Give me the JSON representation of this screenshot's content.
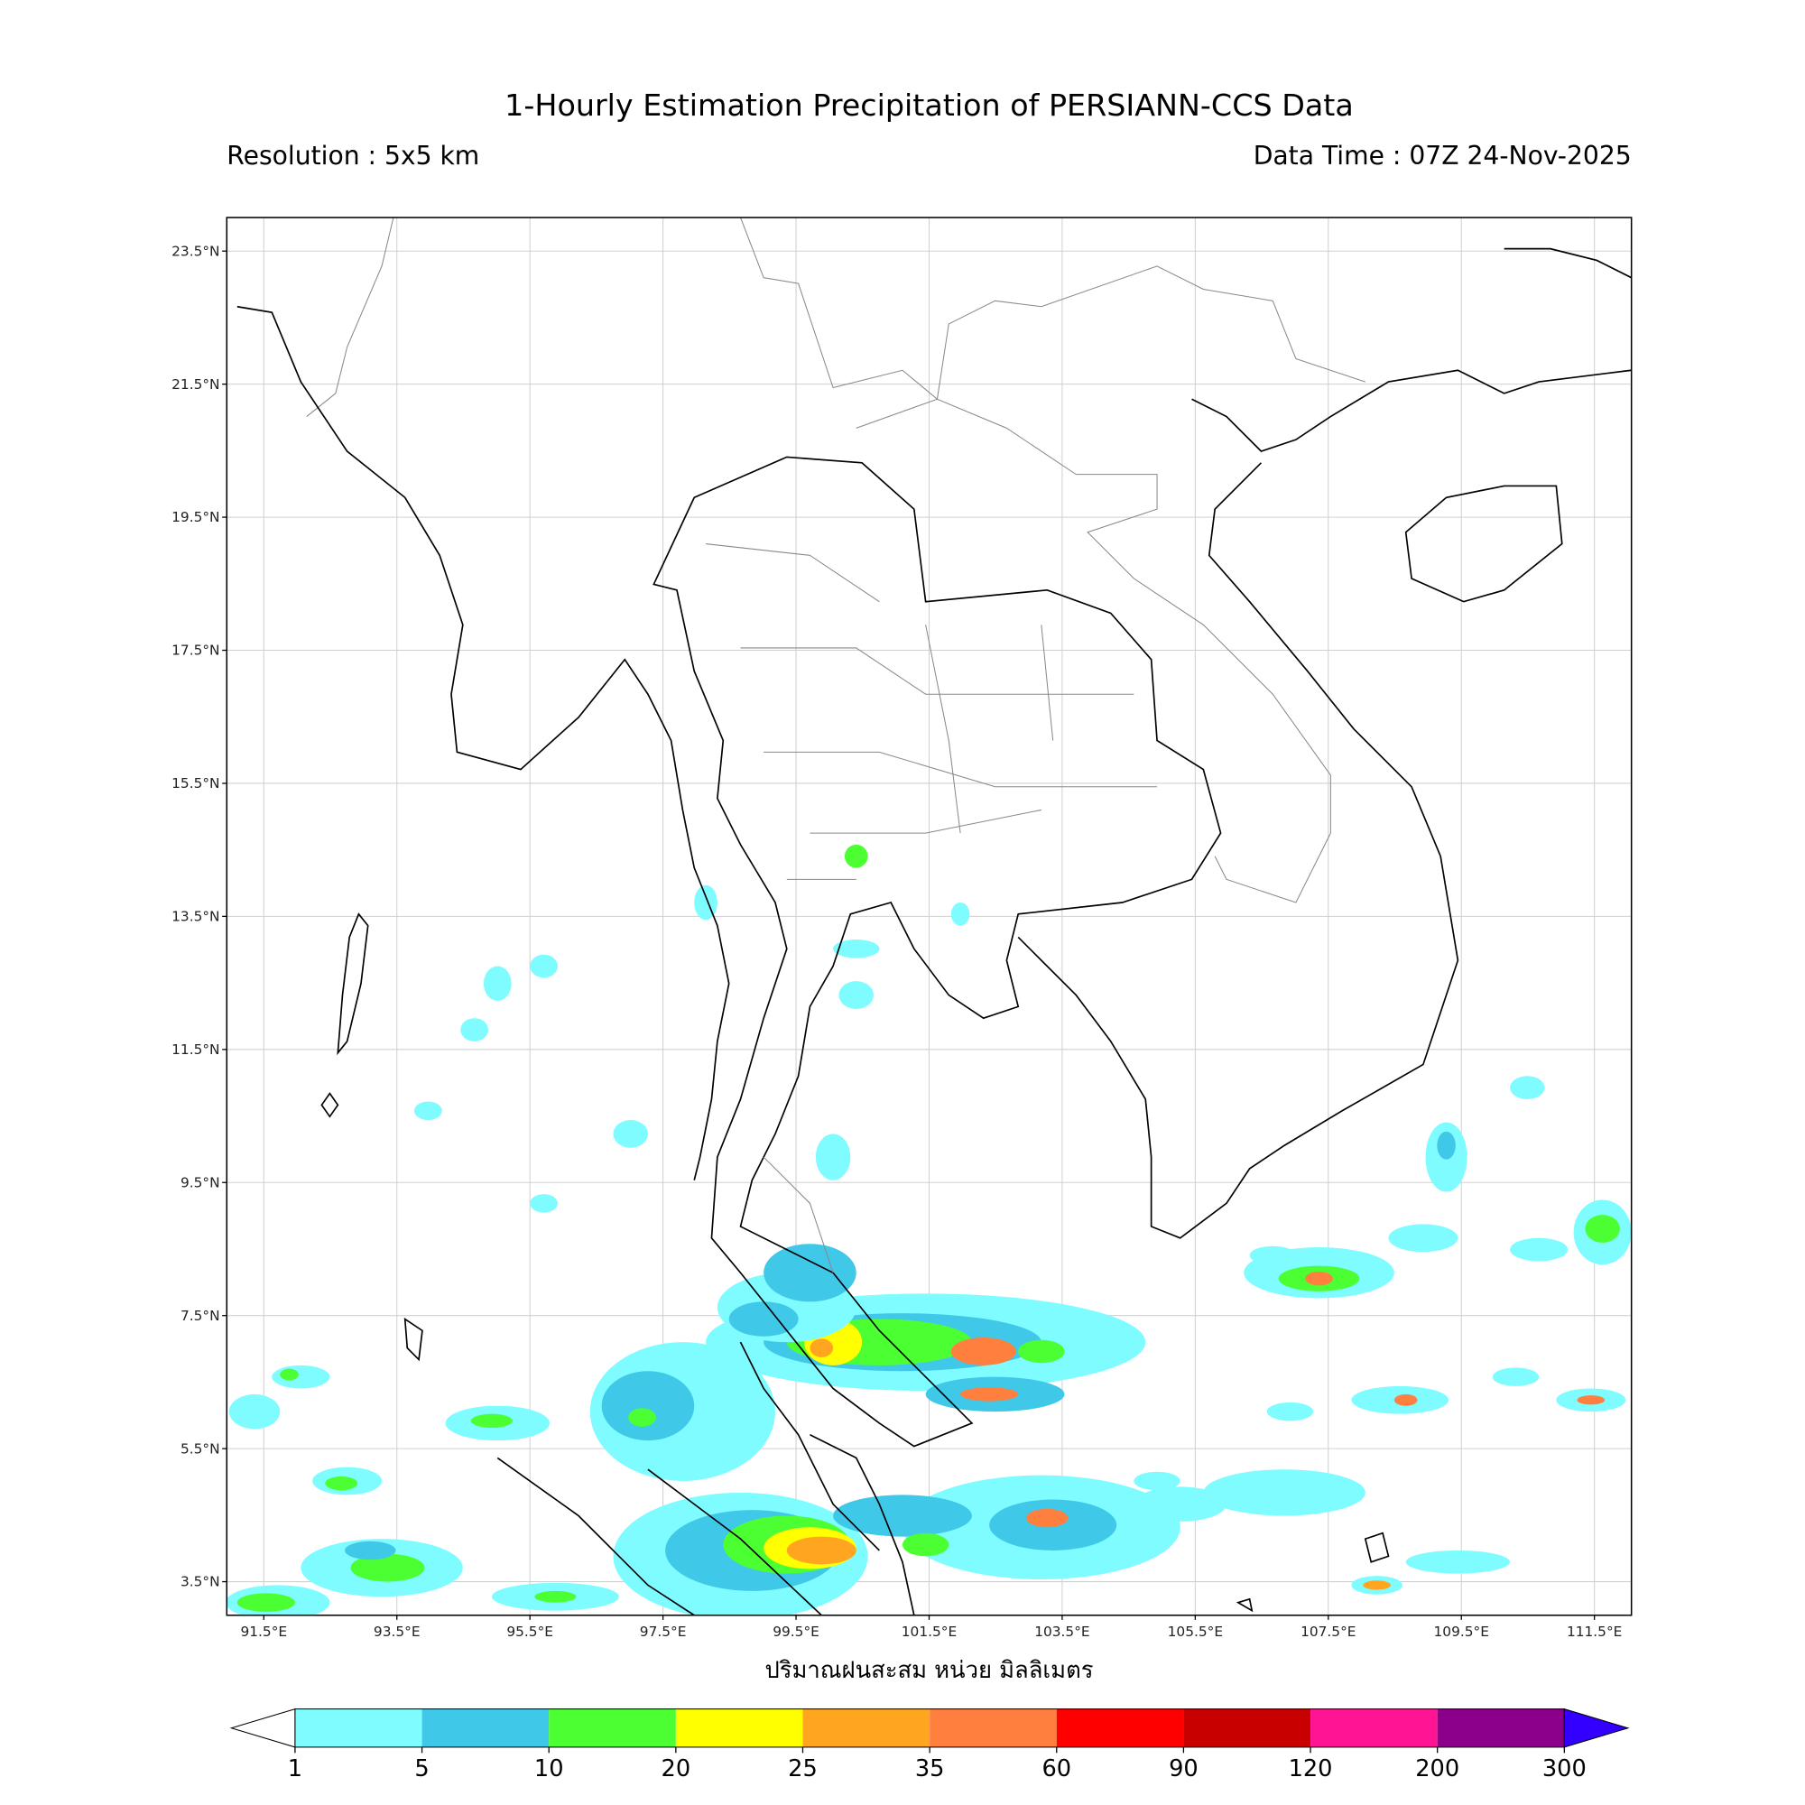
{
  "header": {
    "title": "1-Hourly Estimation Precipitation of PERSIANN-CCS Data",
    "resolution": "Resolution : 5x5 km",
    "data_time": "Data Time : 07Z 24-Nov-2025"
  },
  "map": {
    "lat_ticks": [
      "23.5°N",
      "21.5°N",
      "19.5°N",
      "17.5°N",
      "15.5°N",
      "13.5°N",
      "11.5°N",
      "9.5°N",
      "7.5°N",
      "5.5°N",
      "3.5°N"
    ],
    "lon_ticks": [
      "91.5°E",
      "93.5°E",
      "95.5°E",
      "97.5°E",
      "99.5°E",
      "101.5°E",
      "103.5°E",
      "105.5°E",
      "107.5°E",
      "109.5°E",
      "111.5°E"
    ],
    "x_label": "ปริมาณฝนสะสม หน่วย มิลลิเมตร"
  },
  "colorbar": {
    "labels": [
      "1",
      "5",
      "10",
      "20",
      "25",
      "35",
      "60",
      "90",
      "120",
      "200",
      "300"
    ],
    "colors": [
      "#7ffcff",
      "#40c8e8",
      "#4cff33",
      "#ffff00",
      "#ffa520",
      "#ff7f3f",
      "#ff0000",
      "#c80000",
      "#ff1493",
      "#8b008b"
    ],
    "under_color": "#ffffff",
    "over_color": "#3300ff"
  }
}
